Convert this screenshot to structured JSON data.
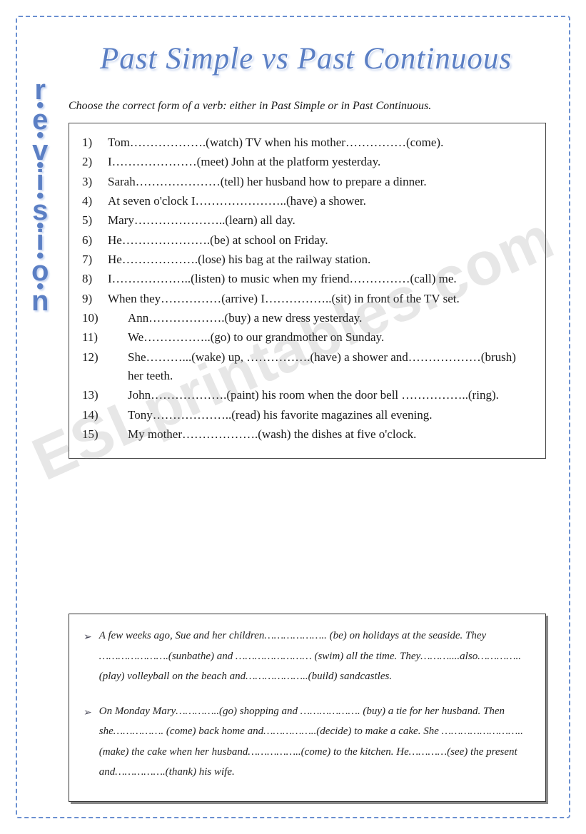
{
  "vertical_label_letters": [
    "r",
    "e",
    "v",
    "i",
    "s",
    "i",
    "o",
    "n"
  ],
  "main_title": "Past Simple vs Past Continuous",
  "instruction": "Choose the correct form of a verb: either in Past Simple or in Past Continuous.",
  "items": [
    {
      "n": "1)",
      "t": "Tom……………….(watch) TV when his mother……………(come)."
    },
    {
      "n": "2)",
      "t": "I…………………(meet) John at the platform yesterday."
    },
    {
      "n": "3)",
      "t": "Sarah…………………(tell) her husband how to prepare a dinner."
    },
    {
      "n": "4)",
      "t": "At seven o'clock I…………………..(have) a shower."
    },
    {
      "n": "5)",
      "t": "Mary…………………..(learn) all day."
    },
    {
      "n": "6)",
      "t": "He………………….(be) at school on Friday."
    },
    {
      "n": "7)",
      "t": "He……………….(lose) his bag at the railway station."
    },
    {
      "n": "8)",
      "t": "I………………..(listen) to music when my friend……………(call) me."
    },
    {
      "n": "9)",
      "t": "When they……………(arrive) I……………..(sit) in front of the TV set."
    },
    {
      "n": "10)",
      "t": "Ann……………….(buy) a new dress yesterday."
    },
    {
      "n": "11)",
      "t": "We……………..(go) to our grandmother on Sunday."
    },
    {
      "n": "12)",
      "t": "She………...(wake) up, …………….(have) a shower and………………(brush) her teeth."
    },
    {
      "n": "13)",
      "t": "John……………….(paint) his room when the door bell ……………..(ring)."
    },
    {
      "n": "14)",
      "t": "Tony………………..(read) his favorite magazines all evening."
    },
    {
      "n": "15)",
      "t": "My mother……………….(wash) the dishes at five o'clock."
    }
  ],
  "watermark": "ESLprintables.com",
  "paragraphs": [
    "A few weeks ago, Sue and her children……………….. (be) on holidays at the seaside. They ………………….(sunbathe) and …………………… (swim) all the time. They………....also…………..(play) volleyball on the beach and………………..(build) sandcastles.",
    "On Monday Mary…………..(go) shopping and ………………. (buy) a tie for her husband. Then she……………. (come) back home and……………..(decide) to make a cake. She ……………………..(make) the cake when her husband……………..(come) to the kitchen. He…………(see) the present and…………….(thank) his wife."
  ]
}
